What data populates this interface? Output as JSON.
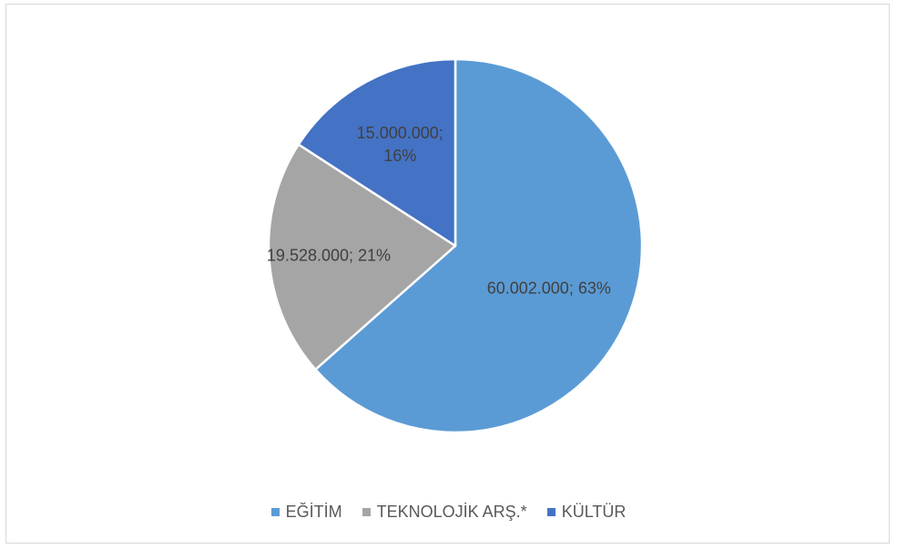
{
  "chart_data": {
    "type": "pie",
    "title": "",
    "legend_position": "bottom",
    "slices": [
      {
        "name": "EĞİTİM",
        "value": 60002000,
        "percent": 63,
        "label": "60.002.000; 63%",
        "color": "#5b9bd5"
      },
      {
        "name": "TEKNOLOJİK ARŞ.*",
        "value": 19528000,
        "percent": 21,
        "label": "19.528.000; 21%",
        "color": "#a5a5a5"
      },
      {
        "name": "KÜLTÜR",
        "value": 15000000,
        "percent": 16,
        "label_lines": [
          "15.000.000;",
          "16%"
        ],
        "color": "#4472c4"
      }
    ]
  }
}
